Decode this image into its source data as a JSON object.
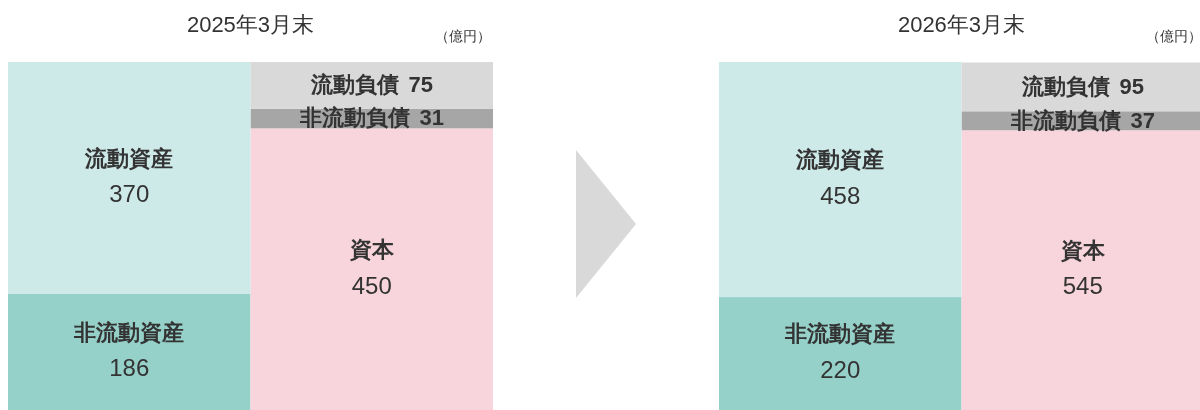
{
  "chart_data": [
    {
      "type": "bar",
      "stacked": true,
      "title": "2025年3月末",
      "annotations": [
        "（億円）"
      ],
      "categories": [
        null,
        null
      ],
      "data_labels": true,
      "series": [
        {
          "name": "非流動資産",
          "color": "#95d1c9",
          "values": [
            186,
            null
          ]
        },
        {
          "name": "資本",
          "color": "#f8d4dc",
          "values": [
            null,
            450
          ]
        },
        {
          "name": "非流動負債",
          "color": "#a6a6a6",
          "values": [
            null,
            31
          ]
        },
        {
          "name": "流動資産",
          "color": "#cdeae9",
          "values": [
            370,
            null
          ]
        },
        {
          "name": "流動負債",
          "color": "#d9d9d9",
          "values": [
            null,
            75
          ]
        }
      ]
    },
    {
      "type": "bar",
      "stacked": true,
      "title": "2026年3月末",
      "annotations": [
        "（億円）"
      ],
      "categories": [
        null,
        null
      ],
      "data_labels": true,
      "series": [
        {
          "name": "非流動資産",
          "color": "#95d1c9",
          "values": [
            220,
            null
          ]
        },
        {
          "name": "資本",
          "color": "#f8d4dc",
          "values": [
            null,
            545
          ]
        },
        {
          "name": "非流動負債",
          "color": "#a6a6a6",
          "values": [
            null,
            37
          ]
        },
        {
          "name": "流動資産",
          "color": "#cdeae9",
          "values": [
            458,
            null
          ]
        },
        {
          "name": "流動負債",
          "color": "#d9d9d9",
          "values": [
            null,
            95
          ]
        }
      ]
    }
  ]
}
